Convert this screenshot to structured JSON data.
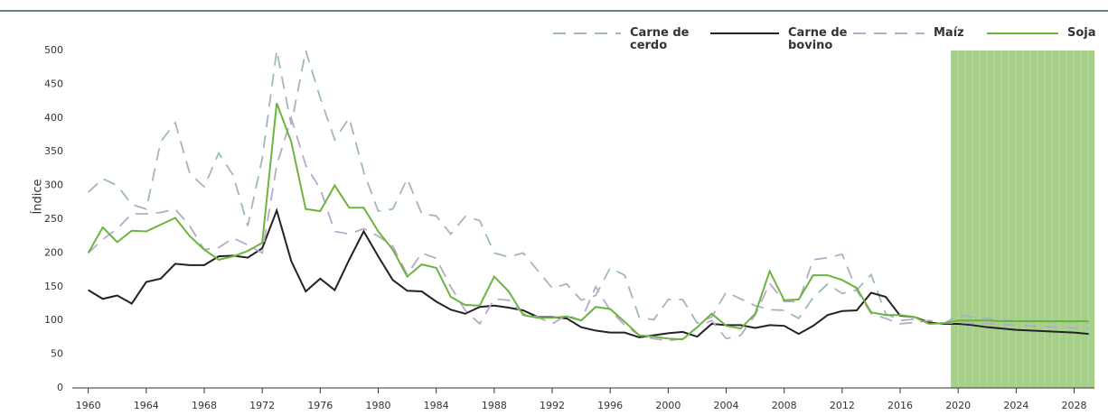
{
  "chart_data": {
    "type": "line",
    "y_label": "Índice",
    "xlim": [
      1958.9,
      2029.4
    ],
    "xticks": [
      1960,
      1964,
      1968,
      1972,
      1976,
      1980,
      1984,
      1988,
      1992,
      1996,
      2000,
      2004,
      2008,
      2012,
      2016,
      2020,
      2024,
      2028
    ],
    "ylim": [
      0,
      500
    ],
    "yticks": [
      0,
      50,
      100,
      150,
      200,
      250,
      300,
      350,
      400,
      450,
      500
    ],
    "shaded_xrange": [
      2019.5,
      2029.4
    ],
    "shade_color": "#a6d08a",
    "x": [
      1960,
      1961,
      1962,
      1963,
      1964,
      1965,
      1966,
      1967,
      1968,
      1969,
      1970,
      1971,
      1972,
      1973,
      1974,
      1975,
      1976,
      1977,
      1978,
      1979,
      1980,
      1981,
      1982,
      1983,
      1984,
      1985,
      1986,
      1987,
      1988,
      1989,
      1990,
      1991,
      1992,
      1993,
      1994,
      1995,
      1996,
      1997,
      1998,
      1999,
      2000,
      2001,
      2002,
      2003,
      2004,
      2005,
      2006,
      2007,
      2008,
      2009,
      2010,
      2011,
      2012,
      2013,
      2014,
      2015,
      2016,
      2017,
      2018,
      2019,
      2020,
      2021,
      2022,
      2023,
      2024,
      2025,
      2026,
      2027,
      2028,
      2029
    ],
    "series": [
      {
        "name": "Carne de cerdo",
        "color": "#9fb8bd",
        "style": "dashed",
        "values": [
          290,
          310,
          300,
          272,
          265,
          365,
          393,
          318,
          298,
          348,
          315,
          240,
          340,
          500,
          390,
          500,
          430,
          368,
          400,
          320,
          262,
          265,
          310,
          258,
          255,
          228,
          254,
          248,
          200,
          194,
          200,
          174,
          148,
          154,
          130,
          137,
          178,
          167,
          105,
          101,
          131,
          131,
          96,
          105,
          142,
          132,
          122,
          116,
          115,
          103,
          134,
          154,
          140,
          145,
          168,
          110,
          100,
          102,
          97,
          95,
          108,
          105,
          103,
          101,
          99,
          98,
          98,
          97,
          97,
          96
        ]
      },
      {
        "name": "Carne de bovino",
        "color": "#222222",
        "style": "solid",
        "values": [
          145,
          132,
          137,
          125,
          157,
          162,
          184,
          182,
          182,
          195,
          196,
          193,
          207,
          263,
          188,
          143,
          162,
          145,
          190,
          232,
          195,
          160,
          144,
          143,
          128,
          116,
          110,
          120,
          122,
          119,
          115,
          105,
          105,
          103,
          90,
          85,
          82,
          82,
          75,
          78,
          81,
          83,
          76,
          95,
          93,
          93,
          89,
          93,
          92,
          80,
          92,
          108,
          114,
          115,
          141,
          135,
          107,
          105,
          97,
          95,
          95,
          93,
          90,
          88,
          86,
          85,
          84,
          83,
          82,
          80
        ]
      },
      {
        "name": "Maíz",
        "color": "#b9a8cc",
        "style": "dashed",
        "values": [
          200,
          220,
          236,
          258,
          258,
          260,
          265,
          240,
          205,
          208,
          222,
          212,
          200,
          330,
          400,
          330,
          295,
          232,
          228,
          236,
          225,
          210,
          168,
          200,
          192,
          150,
          115,
          95,
          132,
          130,
          110,
          105,
          95,
          108,
          100,
          150,
          115,
          93,
          78,
          73,
          70,
          73,
          90,
          100,
          73,
          78,
          108,
          155,
          128,
          128,
          190,
          193,
          198,
          145,
          110,
          103,
          95,
          97,
          100,
          96,
          97,
          96,
          95,
          94,
          93,
          92,
          91,
          90,
          89,
          88
        ]
      },
      {
        "name": "Soja",
        "color": "#6db33f",
        "style": "solid",
        "values": [
          200,
          238,
          216,
          233,
          232,
          242,
          252,
          225,
          205,
          190,
          195,
          203,
          215,
          422,
          365,
          265,
          262,
          300,
          267,
          267,
          232,
          205,
          165,
          183,
          178,
          135,
          123,
          122,
          165,
          143,
          108,
          104,
          104,
          106,
          100,
          120,
          117,
          98,
          78,
          76,
          73,
          72,
          90,
          110,
          92,
          88,
          110,
          173,
          130,
          131,
          167,
          167,
          160,
          148,
          112,
          108,
          108,
          105,
          95,
          96,
          100,
          100,
          100,
          99,
          99,
          99,
          99,
          99,
          99,
          99
        ]
      }
    ]
  }
}
